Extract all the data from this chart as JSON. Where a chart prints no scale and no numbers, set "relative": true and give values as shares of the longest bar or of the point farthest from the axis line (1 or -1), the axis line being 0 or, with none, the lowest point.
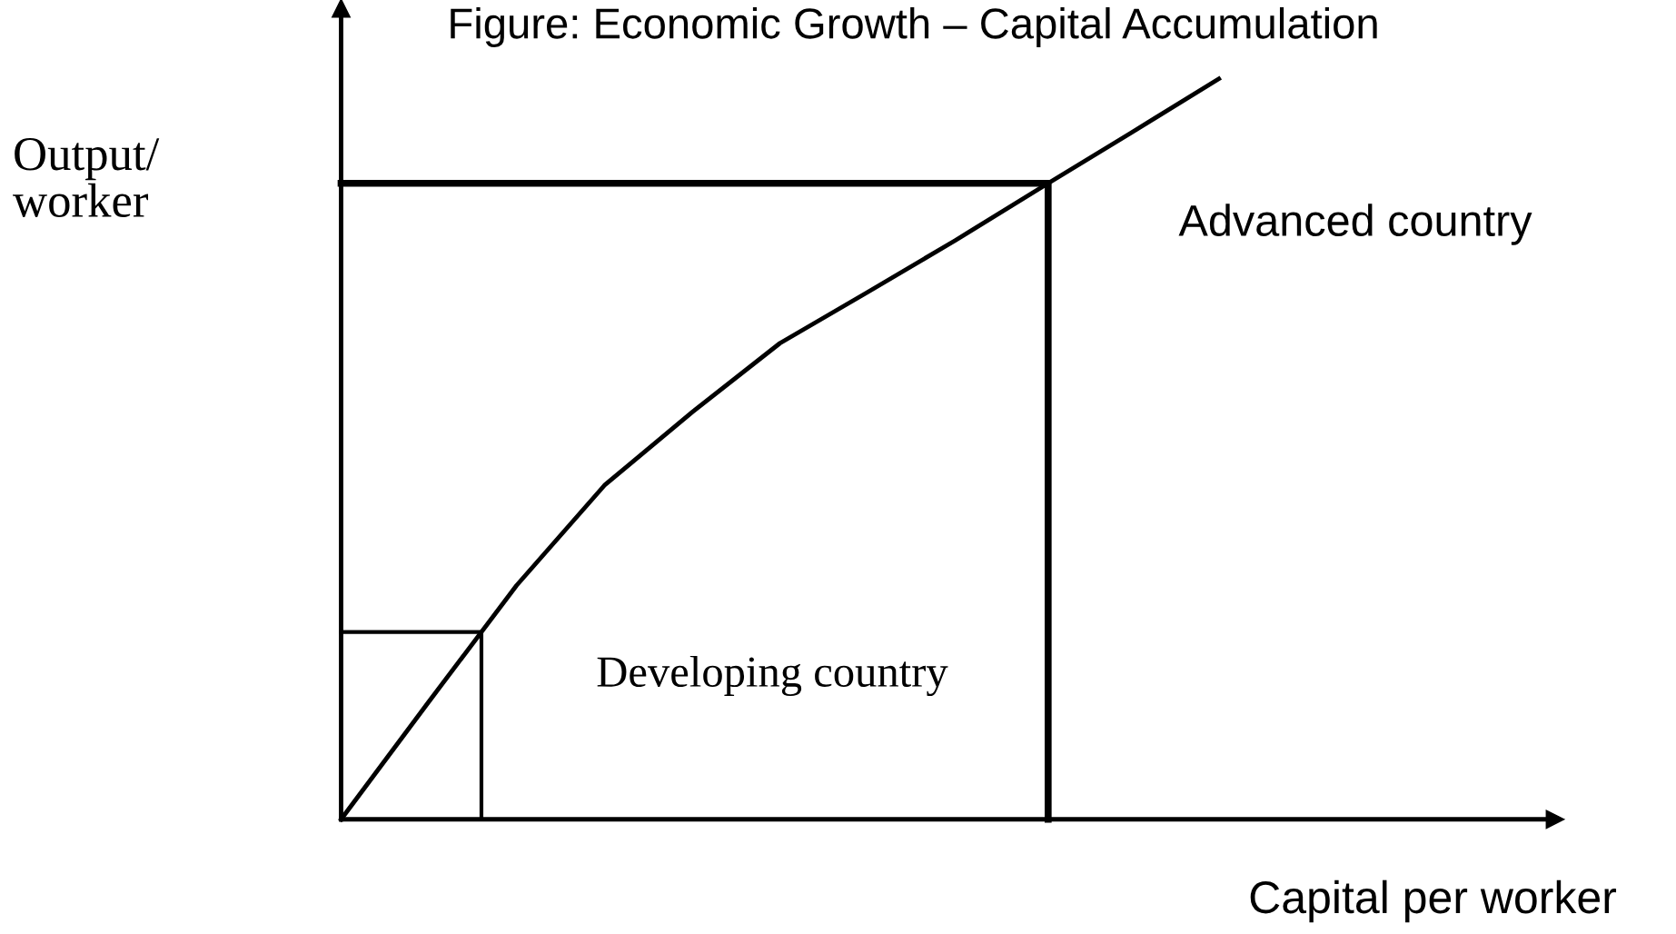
{
  "chart_data": {
    "type": "line",
    "title": "Figure: Economic Growth – Capital Accumulation",
    "xlabel": "Capital per worker",
    "ylabel": "Output/\nworker",
    "relative": true,
    "marker": "none",
    "line_style": "solid",
    "annotations": [
      "Advanced country",
      "Developing country"
    ],
    "categories": [
      null,
      null,
      null,
      null,
      null,
      null,
      null,
      null,
      null,
      null,
      null
    ],
    "series": [
      {
        "color": "#000000",
        "values": [
          0,
          0.159,
          0.316,
          0.451,
          0.55,
          0.643,
          0.712,
          0.782,
          0.855,
          0.927,
          1.0
        ]
      }
    ],
    "ref_lines": [
      {
        "axis": "y",
        "value": 0.253,
        "color": "#000000",
        "line_style": "solid"
      },
      {
        "axis": "y",
        "value": 0.859,
        "color": "#000000",
        "line_style": "solid"
      }
    ]
  }
}
